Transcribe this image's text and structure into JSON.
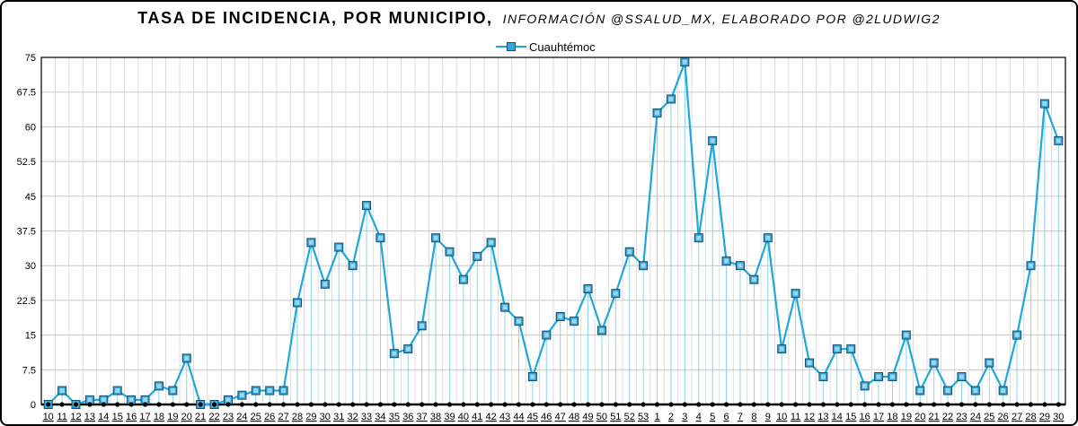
{
  "chart_data": {
    "type": "line",
    "title": "TASA DE INCIDENCIA, POR MUNICIPIO,",
    "subtitle": "INFORMACIÓN @SSALUD_MX, ELABORADO POR @2LUDWIG2",
    "xlabel": "",
    "ylabel": "",
    "ylim": [
      0,
      75
    ],
    "yticks": [
      "0",
      "7.5",
      "15",
      "22.5",
      "30",
      "37.5",
      "45",
      "52.5",
      "60",
      "67.5",
      "75"
    ],
    "grid": true,
    "legend_position": "top-center",
    "categories": [
      "10",
      "11",
      "12",
      "13",
      "14",
      "15",
      "16",
      "17",
      "18",
      "19",
      "20",
      "21",
      "22",
      "23",
      "24",
      "25",
      "26",
      "27",
      "28",
      "29",
      "30",
      "31",
      "32",
      "33",
      "34",
      "35",
      "36",
      "37",
      "38",
      "39",
      "40",
      "41",
      "42",
      "43",
      "44",
      "45",
      "46",
      "47",
      "48",
      "49",
      "50",
      "51",
      "52",
      "53",
      "1",
      "2",
      "3",
      "4",
      "5",
      "6",
      "7",
      "8",
      "9",
      "10",
      "11",
      "12",
      "13",
      "14",
      "15",
      "16",
      "17",
      "18",
      "19",
      "20",
      "21",
      "22",
      "23",
      "24",
      "25",
      "26",
      "27",
      "28",
      "29",
      "30"
    ],
    "series": [
      {
        "name": "Cuauhtémoc",
        "color": "#1ea9d8",
        "values": [
          0,
          3,
          0,
          1,
          1,
          3,
          1,
          1,
          4,
          3,
          10,
          0,
          0,
          1,
          2,
          3,
          3,
          3,
          22,
          35,
          26,
          34,
          30,
          43,
          36,
          11,
          12,
          17,
          36,
          33,
          27,
          32,
          35,
          21,
          18,
          6,
          15,
          19,
          18,
          25,
          16,
          24,
          33,
          30,
          63,
          66,
          74,
          36,
          57,
          31,
          30,
          27,
          36,
          12,
          24,
          9,
          6,
          12,
          12,
          4,
          6,
          6,
          15,
          3,
          9,
          3,
          6,
          3,
          9,
          3,
          15,
          30,
          65,
          57
        ]
      }
    ]
  }
}
